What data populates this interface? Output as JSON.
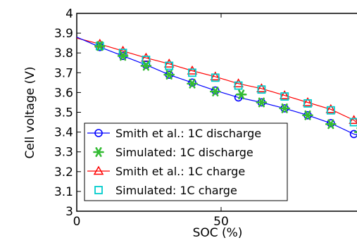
{
  "chart_data": {
    "type": "line",
    "title": "",
    "xlabel": "SOC (%)",
    "ylabel": "Cell voltage (V)",
    "xlim": [
      0,
      100
    ],
    "ylim": [
      3.0,
      4.0
    ],
    "x_ticks": [
      0,
      50
    ],
    "x_tick_labels": [
      "0",
      "50"
    ],
    "y_ticks": [
      3.0,
      3.1,
      3.2,
      3.3,
      3.4,
      3.5,
      3.6,
      3.7,
      3.8,
      3.9,
      4.0
    ],
    "y_tick_labels": [
      "3",
      "3.1",
      "3.2",
      "3.3",
      "3.4",
      "3.5",
      "3.6",
      "3.7",
      "3.8",
      "3.9",
      "4"
    ],
    "grid": false,
    "legend_position": "bottom-left",
    "series": [
      {
        "name": "Smith et al.: 1C discharge",
        "style": "line-circle",
        "color": "#0000ff",
        "x": [
          0,
          8,
          16,
          24,
          32,
          40,
          48,
          56,
          64,
          72,
          80,
          88,
          96,
          100
        ],
        "y": [
          3.88,
          3.83,
          3.785,
          3.74,
          3.69,
          3.65,
          3.61,
          3.575,
          3.55,
          3.52,
          3.485,
          3.445,
          3.39,
          3.375
        ],
        "marker_x": [
          8,
          16,
          24,
          32,
          40,
          48,
          56,
          64,
          72,
          80,
          88,
          96
        ],
        "marker_y": [
          3.83,
          3.785,
          3.74,
          3.69,
          3.65,
          3.61,
          3.575,
          3.55,
          3.52,
          3.485,
          3.445,
          3.39
        ]
      },
      {
        "name": "Simulated: 1C discharge",
        "style": "asterisk",
        "color": "#33bb33",
        "x": [
          8,
          16,
          24,
          32,
          40,
          48,
          57,
          64,
          72,
          80,
          88,
          98
        ],
        "y": [
          3.835,
          3.785,
          3.735,
          3.69,
          3.645,
          3.605,
          3.59,
          3.55,
          3.52,
          3.485,
          3.44,
          3.4
        ]
      },
      {
        "name": "Smith et al.: 1C charge",
        "style": "line-triangle",
        "color": "#ff0000",
        "x": [
          0,
          8,
          16,
          24,
          32,
          40,
          48,
          56,
          64,
          72,
          80,
          88,
          96,
          100
        ],
        "y": [
          3.875,
          3.845,
          3.81,
          3.775,
          3.745,
          3.71,
          3.68,
          3.645,
          3.62,
          3.585,
          3.55,
          3.515,
          3.46,
          3.41
        ],
        "marker_x": [
          8,
          16,
          24,
          32,
          40,
          48,
          56,
          64,
          72,
          80,
          88,
          96
        ],
        "marker_y": [
          3.845,
          3.81,
          3.775,
          3.745,
          3.71,
          3.68,
          3.645,
          3.62,
          3.585,
          3.55,
          3.515,
          3.46
        ]
      },
      {
        "name": "Simulated: 1C charge",
        "style": "square",
        "color": "#00cccc",
        "x": [
          8,
          16,
          24,
          32,
          40,
          48,
          56,
          64,
          72,
          80,
          88,
          96
        ],
        "y": [
          3.835,
          3.8,
          3.765,
          3.735,
          3.7,
          3.675,
          3.635,
          3.615,
          3.58,
          3.545,
          3.51,
          3.45
        ]
      }
    ]
  }
}
